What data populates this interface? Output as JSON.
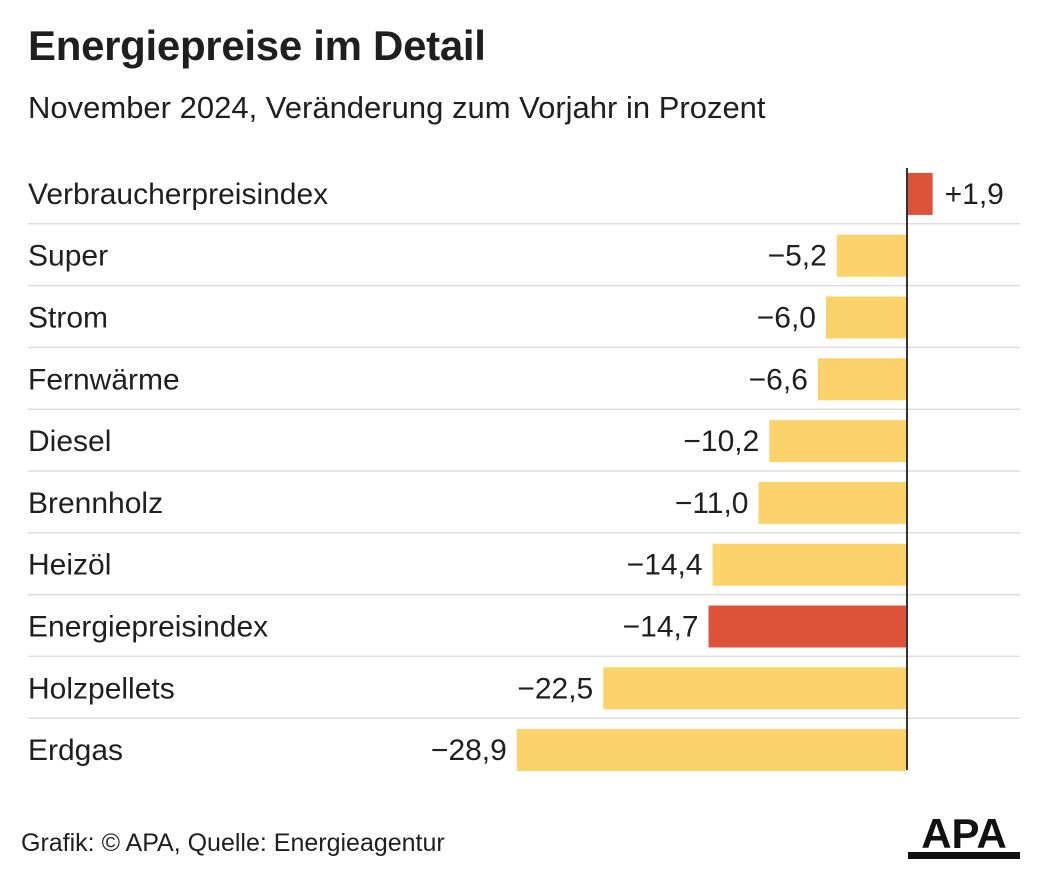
{
  "title": "Energiepreise im Detail",
  "subtitle": "November 2024, Veränderung zum Vorjahr in Prozent",
  "footer": "Grafik: © APA, Quelle: Energieagentur",
  "logo_text": "APA",
  "colors": {
    "highlight": "#dd5339",
    "default": "#fcd36a",
    "axis": "#333333",
    "separator": "#dddddd",
    "text": "#1f1f1f"
  },
  "chart_data": {
    "type": "bar",
    "orientation": "horizontal",
    "title": "Energiepreise im Detail",
    "subtitle": "November 2024, Veränderung zum Vorjahr in Prozent",
    "categories": [
      "Verbraucherpreisindex",
      "Super",
      "Strom",
      "Fernwärme",
      "Diesel",
      "Brennholz",
      "Heizöl",
      "Energiepreisindex",
      "Holzpellets",
      "Erdgas"
    ],
    "values": [
      1.9,
      -5.2,
      -6.0,
      -6.6,
      -10.2,
      -11.0,
      -14.4,
      -14.7,
      -22.5,
      -28.9
    ],
    "value_labels": [
      "+1,9",
      "−5,2",
      "−6,0",
      "−6,6",
      "−10,2",
      "−11,0",
      "−14,4",
      "−14,7",
      "−22,5",
      "−28,9"
    ],
    "highlighted": [
      "Verbraucherpreisindex",
      "Energiepreisindex"
    ],
    "xlim": [
      -28.9,
      1.9
    ],
    "grid": false
  }
}
